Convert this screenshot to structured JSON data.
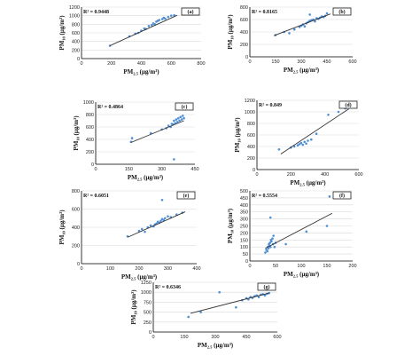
{
  "chart_data": [
    {
      "type": "scatter",
      "panel": "(a)",
      "r2": "R² = 0.9448",
      "xlabel": "PM2.5 (μg/m³)",
      "ylabel": "PM10 (μg/m³)",
      "xlim": [
        0,
        800
      ],
      "ylim": [
        0,
        1200
      ],
      "xticks": [
        0,
        200,
        400,
        600,
        800
      ],
      "yticks": [
        0,
        200,
        400,
        600,
        800,
        1000,
        1200
      ],
      "x": [
        190,
        320,
        360,
        380,
        400,
        420,
        430,
        450,
        470,
        480,
        490,
        500,
        510,
        520,
        540,
        550,
        560,
        580,
        600,
        620
      ],
      "y": [
        300,
        520,
        580,
        600,
        650,
        700,
        690,
        760,
        780,
        820,
        800,
        860,
        880,
        900,
        920,
        950,
        930,
        970,
        1000,
        1010
      ],
      "trend": [
        [
          190,
          300
        ],
        [
          640,
          1010
        ]
      ]
    },
    {
      "type": "scatter",
      "panel": "(b)",
      "r2": "R² = 0.8165",
      "xlabel": "PM2.5 (μg/m³)",
      "ylabel": "PM10 (μg/m³)",
      "xlim": [
        0,
        600
      ],
      "ylim": [
        0,
        800
      ],
      "xticks": [
        0,
        150,
        300,
        450,
        600
      ],
      "yticks": [
        0,
        200,
        400,
        600,
        800
      ],
      "x": [
        150,
        200,
        230,
        260,
        290,
        300,
        310,
        320,
        330,
        340,
        350,
        360,
        370,
        380,
        390,
        400,
        410,
        420,
        430,
        440,
        450,
        350
      ],
      "y": [
        350,
        400,
        380,
        440,
        480,
        500,
        520,
        490,
        540,
        560,
        580,
        590,
        600,
        570,
        620,
        610,
        630,
        650,
        640,
        660,
        700,
        680
      ],
      "trend": [
        [
          140,
          340
        ],
        [
          470,
          690
        ]
      ]
    },
    {
      "type": "scatter",
      "panel": "(c)",
      "r2": "R² = 0.4864",
      "xlabel": "PM2.5 (μg/m³)",
      "ylabel": "PM10 (μg/m³)",
      "xlim": [
        0,
        450
      ],
      "ylim": [
        0,
        1000
      ],
      "xticks": [
        0,
        150,
        300,
        450
      ],
      "yticks": [
        0,
        200,
        400,
        600,
        800,
        1000
      ],
      "x": [
        160,
        165,
        250,
        300,
        320,
        330,
        340,
        345,
        350,
        355,
        360,
        365,
        370,
        375,
        380,
        385,
        390,
        395,
        400,
        355
      ],
      "y": [
        360,
        420,
        500,
        560,
        580,
        620,
        600,
        650,
        640,
        700,
        660,
        720,
        680,
        740,
        700,
        760,
        720,
        780,
        740,
        80
      ],
      "trend": [
        [
          160,
          350
        ],
        [
          400,
          700
        ]
      ]
    },
    {
      "type": "scatter",
      "panel": "(d)",
      "r2": "R² = 0.849",
      "xlabel": "PM2.5 (μg/m³)",
      "ylabel": "PM10 (μg/m³)",
      "xlim": [
        0,
        600
      ],
      "ylim": [
        0,
        1200
      ],
      "xticks": [
        0,
        200,
        400,
        600
      ],
      "yticks": [
        0,
        200,
        400,
        600,
        800,
        1000,
        1200
      ],
      "x": [
        130,
        200,
        220,
        240,
        250,
        260,
        270,
        280,
        290,
        300,
        320,
        350,
        420,
        480,
        520
      ],
      "y": [
        350,
        380,
        400,
        420,
        440,
        460,
        430,
        480,
        450,
        500,
        520,
        620,
        950,
        1000,
        1060
      ],
      "trend": [
        [
          140,
          270
        ],
        [
          540,
          1050
        ]
      ]
    },
    {
      "type": "scatter",
      "panel": "(e)",
      "r2": "R² = 0.6051",
      "xlabel": "PM2.5 (μg/m³)",
      "ylabel": "PM10 (μg/m³)",
      "xlim": [
        0,
        400
      ],
      "ylim": [
        0,
        800
      ],
      "xticks": [
        0,
        100,
        200,
        300,
        400
      ],
      "yticks": [
        0,
        200,
        400,
        600,
        800
      ],
      "x": [
        160,
        200,
        210,
        220,
        230,
        240,
        250,
        255,
        260,
        265,
        270,
        275,
        280,
        285,
        290,
        300,
        310,
        330,
        350,
        280
      ],
      "y": [
        300,
        360,
        380,
        350,
        400,
        420,
        410,
        430,
        440,
        460,
        450,
        470,
        490,
        480,
        500,
        520,
        510,
        540,
        560,
        700
      ],
      "trend": [
        [
          160,
          290
        ],
        [
          360,
          570
        ]
      ]
    },
    {
      "type": "scatter",
      "panel": "(f)",
      "r2": "R² = 0.5554",
      "xlabel": "PM2.5 (μg/m³)",
      "ylabel": "PM10 (μg/m³)",
      "xlim": [
        0,
        200
      ],
      "ylim": [
        0,
        500
      ],
      "xticks": [
        0,
        50,
        100,
        150,
        200
      ],
      "yticks": [
        0,
        50,
        100,
        150,
        200,
        250,
        300,
        350,
        400,
        450,
        500
      ],
      "x": [
        30,
        32,
        34,
        35,
        36,
        37,
        38,
        39,
        40,
        41,
        42,
        44,
        45,
        46,
        48,
        50,
        40,
        70,
        110,
        150,
        155
      ],
      "y": [
        60,
        80,
        70,
        100,
        90,
        120,
        110,
        130,
        100,
        150,
        140,
        160,
        120,
        180,
        100,
        130,
        310,
        120,
        210,
        250,
        460
      ],
      "trend": [
        [
          30,
          90
        ],
        [
          160,
          340
        ]
      ]
    },
    {
      "type": "scatter",
      "panel": "(g)",
      "r2": "R² = 0.6346",
      "xlabel": "PM2.5 (μg/m³)",
      "ylabel": "PM10 (μg/m³)",
      "xlim": [
        0,
        600
      ],
      "ylim": [
        0,
        1250
      ],
      "xticks": [
        0,
        150,
        300,
        450,
        600
      ],
      "yticks": [
        0,
        250,
        500,
        750,
        1000,
        1250
      ],
      "x": [
        170,
        230,
        320,
        400,
        430,
        450,
        460,
        470,
        480,
        490,
        500,
        510,
        520,
        530,
        540,
        550,
        560
      ],
      "y": [
        380,
        500,
        1000,
        620,
        800,
        850,
        820,
        880,
        860,
        900,
        920,
        880,
        940,
        950,
        920,
        960,
        980
      ],
      "trend": [
        [
          180,
          470
        ],
        [
          560,
          980
        ]
      ]
    }
  ]
}
